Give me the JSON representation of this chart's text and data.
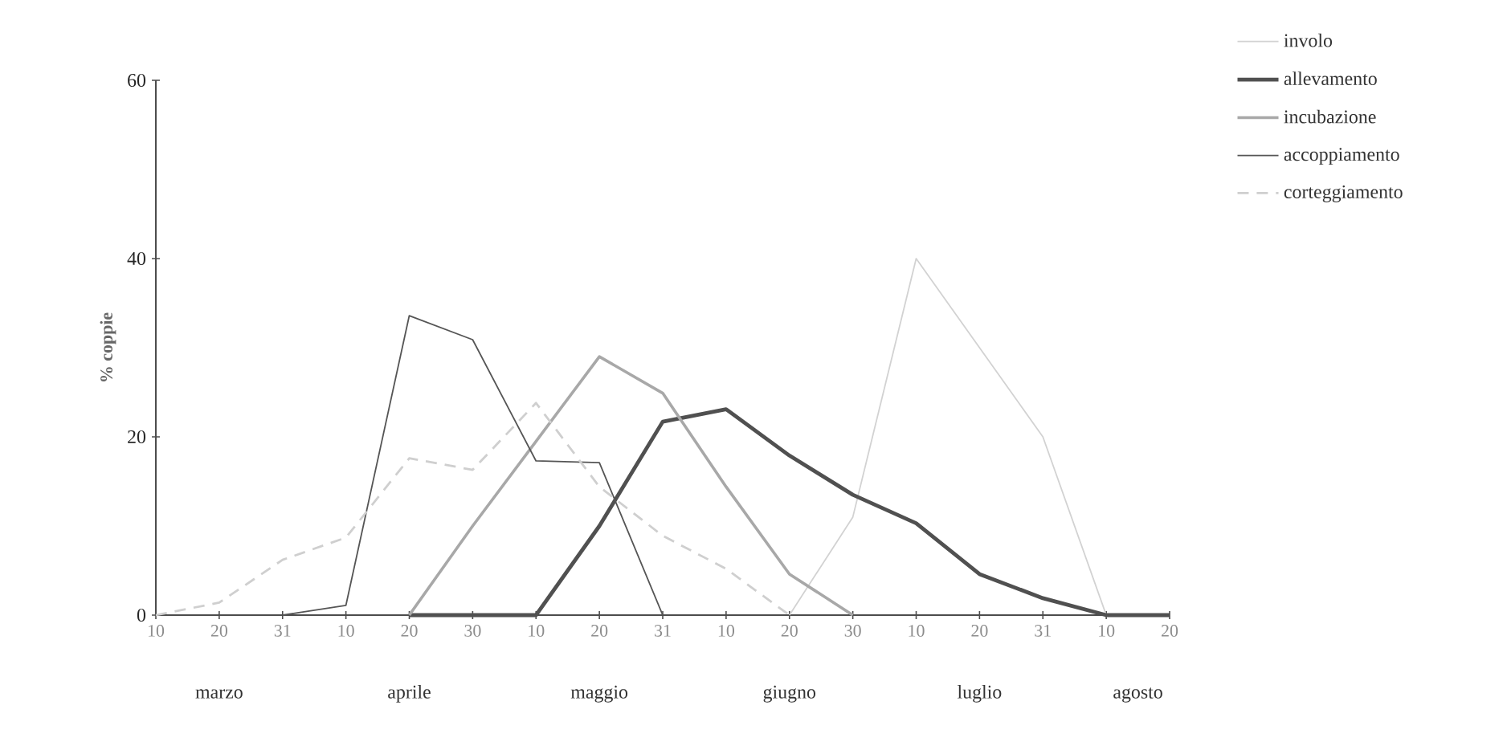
{
  "chart_data": {
    "type": "line",
    "ylabel": "% coppie",
    "categories": [
      "10",
      "20",
      "31",
      "10",
      "20",
      "30",
      "10",
      "20",
      "31",
      "10",
      "20",
      "30",
      "10",
      "20",
      "31",
      "10",
      "20"
    ],
    "annotations": [
      "marzo",
      "aprile",
      "maggio",
      "giugno",
      "luglio",
      "agosto"
    ],
    "ylim": [
      0,
      60
    ],
    "yticks": [
      0,
      20,
      40,
      60
    ],
    "legend": "right",
    "grid": false,
    "series": [
      {
        "name": "involo",
        "color": "#d2d2d2",
        "line_style": "solid",
        "values": [
          null,
          null,
          null,
          null,
          null,
          null,
          null,
          null,
          null,
          null,
          0,
          11,
          40,
          30,
          20,
          0,
          0
        ]
      },
      {
        "name": "allevamento",
        "color": "#505050",
        "line_style": "solid",
        "values": [
          null,
          null,
          null,
          null,
          0,
          0,
          0,
          10,
          21.7,
          23.1,
          17.9,
          13.5,
          10.3,
          4.6,
          1.9,
          0,
          0
        ]
      },
      {
        "name": "incubazione",
        "color": "#a8a8a8",
        "line_style": "solid",
        "values": [
          null,
          null,
          null,
          null,
          0,
          10,
          19.5,
          29,
          24.9,
          14.4,
          4.6,
          0,
          null,
          null,
          null,
          null,
          null
        ]
      },
      {
        "name": "accoppiamento",
        "color": "#555555",
        "line_style": "solid",
        "values": [
          null,
          null,
          0,
          1.1,
          33.6,
          30.9,
          17.3,
          17.1,
          0,
          null,
          null,
          null,
          null,
          null,
          null,
          null,
          null
        ]
      },
      {
        "name": "corteggiamento",
        "color": "#cfcfcf",
        "line_style": "dashed",
        "values": [
          0,
          1.4,
          6.2,
          8.7,
          17.6,
          16.3,
          23.8,
          14.4,
          8.9,
          5.2,
          0,
          null,
          null,
          null,
          null,
          null,
          null
        ]
      }
    ]
  }
}
